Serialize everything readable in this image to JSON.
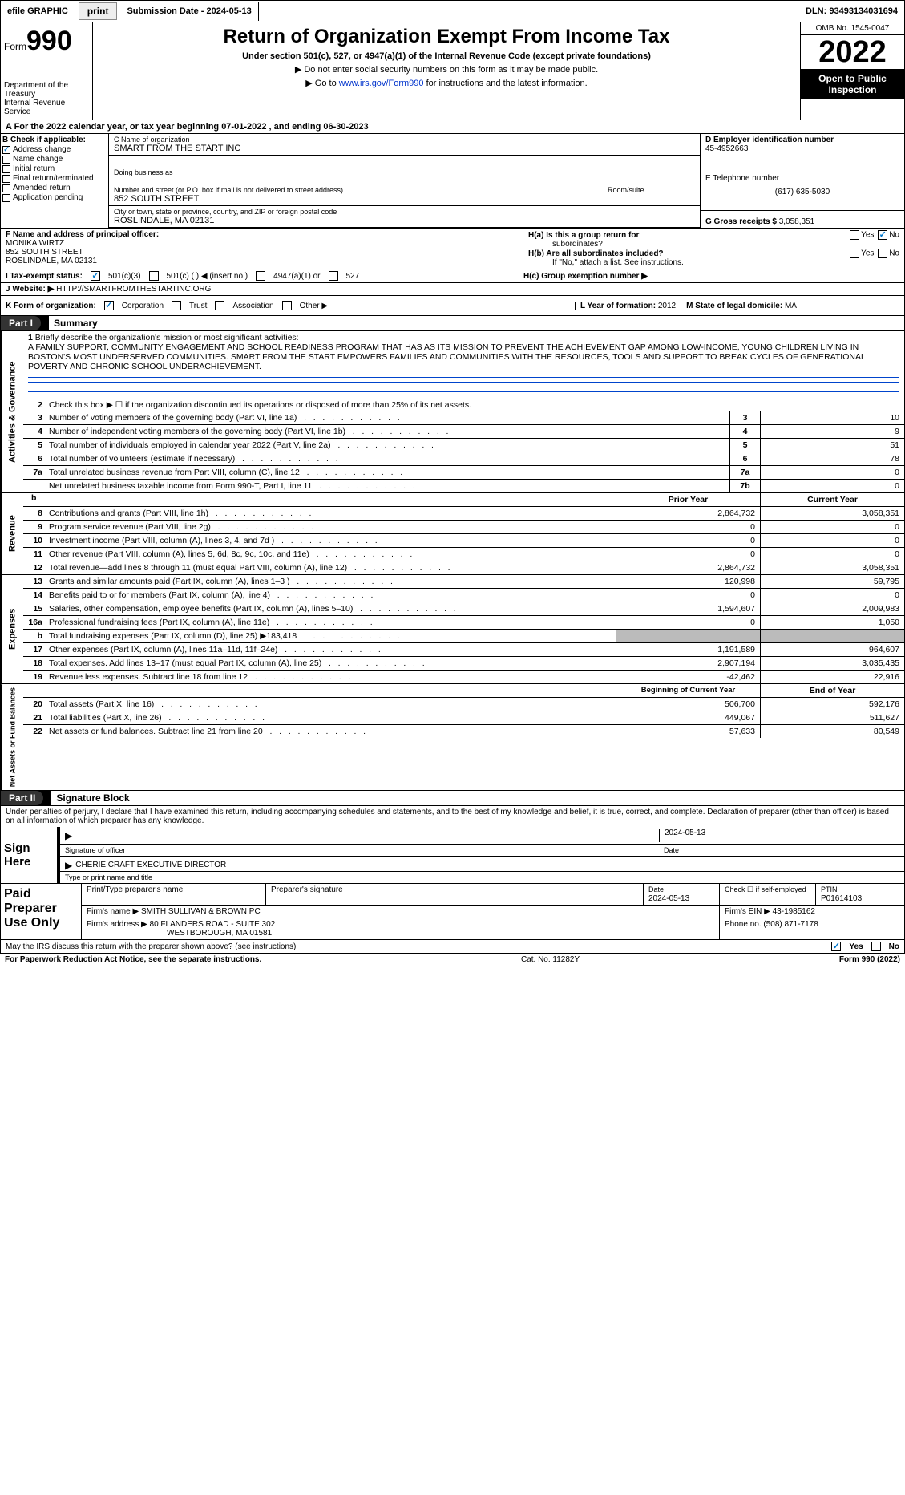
{
  "topbar": {
    "efile_label": "efile GRAPHIC",
    "print_btn": "print",
    "submission": "Submission Date - 2024-05-13",
    "dln": "DLN: 93493134031694"
  },
  "header": {
    "form_word": "Form",
    "form_num": "990",
    "dept1": "Department of the Treasury",
    "dept2": "Internal Revenue Service",
    "title": "Return of Organization Exempt From Income Tax",
    "sub1": "Under section 501(c), 527, or 4947(a)(1) of the Internal Revenue Code (except private foundations)",
    "sub2a": "▶ Do not enter social security numbers on this form as it may be made public.",
    "sub2b_pre": "▶ Go to ",
    "sub2b_link": "www.irs.gov/Form990",
    "sub2b_post": " for instructions and the latest information.",
    "omb": "OMB No. 1545-0047",
    "year": "2022",
    "open": "Open to Public Inspection"
  },
  "row_a": "A For the 2022 calendar year, or tax year beginning 07-01-2022    , and ending 06-30-2023",
  "b": {
    "hdr": "B Check if applicable:",
    "opts": [
      "Address change",
      "Name change",
      "Initial return",
      "Final return/terminated",
      "Amended return",
      "Application pending"
    ],
    "checked_idx": 0
  },
  "c": {
    "name_lbl": "C Name of organization",
    "name": "SMART FROM THE START INC",
    "dba_lbl": "Doing business as",
    "addr_lbl": "Number and street (or P.O. box if mail is not delivered to street address)",
    "addr": "852 SOUTH STREET",
    "room_lbl": "Room/suite",
    "city_lbl": "City or town, state or province, country, and ZIP or foreign postal code",
    "city": "ROSLINDALE, MA  02131"
  },
  "d": {
    "lbl": "D Employer identification number",
    "val": "45-4952663"
  },
  "e": {
    "lbl": "E Telephone number",
    "val": "(617) 635-5030"
  },
  "g": {
    "lbl": "G Gross receipts $",
    "val": "3,058,351"
  },
  "f": {
    "lbl": "F  Name and address of principal officer:",
    "name": "MONIKA WIRTZ",
    "addr1": "852 SOUTH STREET",
    "addr2": "ROSLINDALE, MA  02131"
  },
  "h": {
    "a_lbl": "H(a)  Is this a group return for",
    "a_lbl2": "subordinates?",
    "b_lbl": "H(b)  Are all subordinates included?",
    "b_note": "If \"No,\" attach a list. See instructions.",
    "c_lbl": "H(c)  Group exemption number ▶",
    "yes": "Yes",
    "no": "No"
  },
  "i": {
    "lbl": "I   Tax-exempt status:",
    "o1": "501(c)(3)",
    "o2": "501(c) (  ) ◀ (insert no.)",
    "o3": "4947(a)(1) or",
    "o4": "527"
  },
  "j": {
    "lbl": "J   Website: ▶",
    "val": "HTTP://SMARTFROMTHESTARTINC.ORG"
  },
  "k": {
    "lbl": "K Form of organization:",
    "o1": "Corporation",
    "o2": "Trust",
    "o3": "Association",
    "o4": "Other ▶",
    "l_lbl": "L Year of formation:",
    "l_val": "2012",
    "m_lbl": "M State of legal domicile:",
    "m_val": "MA"
  },
  "parts": {
    "p1": "Part I",
    "p1t": "Summary",
    "p2": "Part II",
    "p2t": "Signature Block"
  },
  "vtabs": {
    "gov": "Activities & Governance",
    "rev": "Revenue",
    "exp": "Expenses",
    "net": "Net Assets or Fund Balances"
  },
  "s1": {
    "l1_lbl": "Briefly describe the organization's mission or most significant activities:",
    "l1_txt": "A FAMILY SUPPORT, COMMUNITY ENGAGEMENT AND SCHOOL READINESS PROGRAM THAT HAS AS ITS MISSION TO PREVENT THE ACHIEVEMENT GAP AMONG LOW-INCOME, YOUNG CHILDREN LIVING IN BOSTON'S MOST UNDERSERVED COMMUNITIES. SMART FROM THE START EMPOWERS FAMILIES AND COMMUNITIES WITH THE RESOURCES, TOOLS AND SUPPORT TO BREAK CYCLES OF GENERATIONAL POVERTY AND CHRONIC SCHOOL UNDERACHIEVEMENT.",
    "l2": "Check this box ▶ ☐ if the organization discontinued its operations or disposed of more than 25% of its net assets.",
    "lines": [
      {
        "n": "3",
        "t": "Number of voting members of the governing body (Part VI, line 1a)",
        "bn": "3",
        "v": "10"
      },
      {
        "n": "4",
        "t": "Number of independent voting members of the governing body (Part VI, line 1b)",
        "bn": "4",
        "v": "9"
      },
      {
        "n": "5",
        "t": "Total number of individuals employed in calendar year 2022 (Part V, line 2a)",
        "bn": "5",
        "v": "51"
      },
      {
        "n": "6",
        "t": "Total number of volunteers (estimate if necessary)",
        "bn": "6",
        "v": "78"
      },
      {
        "n": "7a",
        "t": "Total unrelated business revenue from Part VIII, column (C), line 12",
        "bn": "7a",
        "v": "0"
      },
      {
        "n": "",
        "t": "Net unrelated business taxable income from Form 990-T, Part I, line 11",
        "bn": "7b",
        "v": "0"
      }
    ]
  },
  "colhdr": {
    "prior": "Prior Year",
    "curr": "Current Year",
    "beg": "Beginning of Current Year",
    "end": "End of Year"
  },
  "rev": [
    {
      "n": "8",
      "t": "Contributions and grants (Part VIII, line 1h)",
      "p": "2,864,732",
      "c": "3,058,351"
    },
    {
      "n": "9",
      "t": "Program service revenue (Part VIII, line 2g)",
      "p": "0",
      "c": "0"
    },
    {
      "n": "10",
      "t": "Investment income (Part VIII, column (A), lines 3, 4, and 7d )",
      "p": "0",
      "c": "0"
    },
    {
      "n": "11",
      "t": "Other revenue (Part VIII, column (A), lines 5, 6d, 8c, 9c, 10c, and 11e)",
      "p": "0",
      "c": "0"
    },
    {
      "n": "12",
      "t": "Total revenue—add lines 8 through 11 (must equal Part VIII, column (A), line 12)",
      "p": "2,864,732",
      "c": "3,058,351"
    }
  ],
  "exp": [
    {
      "n": "13",
      "t": "Grants and similar amounts paid (Part IX, column (A), lines 1–3 )",
      "p": "120,998",
      "c": "59,795"
    },
    {
      "n": "14",
      "t": "Benefits paid to or for members (Part IX, column (A), line 4)",
      "p": "0",
      "c": "0"
    },
    {
      "n": "15",
      "t": "Salaries, other compensation, employee benefits (Part IX, column (A), lines 5–10)",
      "p": "1,594,607",
      "c": "2,009,983"
    },
    {
      "n": "16a",
      "t": "Professional fundraising fees (Part IX, column (A), line 11e)",
      "p": "0",
      "c": "1,050"
    },
    {
      "n": "b",
      "t": "Total fundraising expenses (Part IX, column (D), line 25) ▶183,418",
      "p": "shade",
      "c": "shade"
    },
    {
      "n": "17",
      "t": "Other expenses (Part IX, column (A), lines 11a–11d, 11f–24e)",
      "p": "1,191,589",
      "c": "964,607"
    },
    {
      "n": "18",
      "t": "Total expenses. Add lines 13–17 (must equal Part IX, column (A), line 25)",
      "p": "2,907,194",
      "c": "3,035,435"
    },
    {
      "n": "19",
      "t": "Revenue less expenses. Subtract line 18 from line 12",
      "p": "-42,462",
      "c": "22,916"
    }
  ],
  "net": [
    {
      "n": "20",
      "t": "Total assets (Part X, line 16)",
      "p": "506,700",
      "c": "592,176"
    },
    {
      "n": "21",
      "t": "Total liabilities (Part X, line 26)",
      "p": "449,067",
      "c": "511,627"
    },
    {
      "n": "22",
      "t": "Net assets or fund balances. Subtract line 21 from line 20",
      "p": "57,633",
      "c": "80,549"
    }
  ],
  "sig": {
    "decl": "Under penalties of perjury, I declare that I have examined this return, including accompanying schedules and statements, and to the best of my knowledge and belief, it is true, correct, and complete. Declaration of preparer (other than officer) is based on all information of which preparer has any knowledge.",
    "sign_here": "Sign Here",
    "sig_officer_lbl": "Signature of officer",
    "date_lbl": "Date",
    "date_val": "2024-05-13",
    "name_lbl": "Type or print name and title",
    "name_val": "CHERIE CRAFT EXECUTIVE DIRECTOR",
    "paid": "Paid Preparer Use Only",
    "prep_name_lbl": "Print/Type preparer's name",
    "prep_sig_lbl": "Preparer's signature",
    "prep_date_lbl": "Date",
    "prep_date_val": "2024-05-13",
    "self_lbl": "Check ☐ if self-employed",
    "ptin_lbl": "PTIN",
    "ptin_val": "P01614103",
    "firm_name_lbl": "Firm's name    ▶",
    "firm_name": "SMITH SULLIVAN & BROWN PC",
    "firm_ein_lbl": "Firm's EIN ▶",
    "firm_ein": "43-1985162",
    "firm_addr_lbl": "Firm's address ▶",
    "firm_addr1": "80 FLANDERS ROAD - SUITE 302",
    "firm_addr2": "WESTBOROUGH, MA  01581",
    "phone_lbl": "Phone no.",
    "phone": "(508) 871-7178"
  },
  "footer": {
    "q": "May the IRS discuss this return with the preparer shown above? (see instructions)",
    "yes": "Yes",
    "no": "No"
  },
  "last": {
    "l": "For Paperwork Reduction Act Notice, see the separate instructions.",
    "m": "Cat. No. 11282Y",
    "r": "Form 990 (2022)"
  }
}
